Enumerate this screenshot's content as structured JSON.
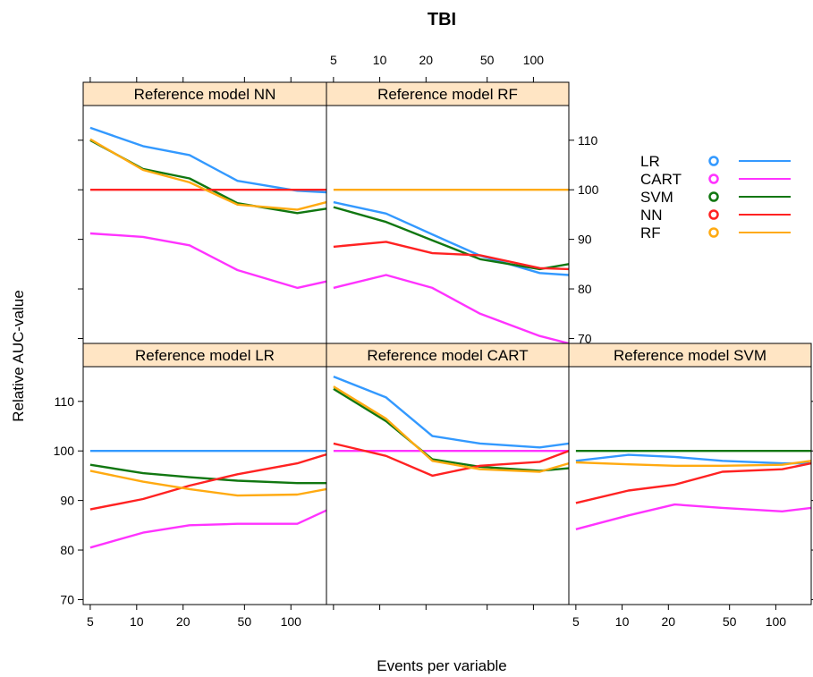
{
  "chart_data": {
    "type": "line",
    "title": "TBI",
    "xlabel": "Events per variable",
    "ylabel": "Relative AUC-value",
    "x_scale": "log",
    "xlim": [
      4.5,
      170
    ],
    "ylim": [
      69,
      117
    ],
    "x_ticks": [
      5,
      10,
      20,
      50,
      100
    ],
    "y_ticks": [
      70,
      80,
      90,
      100,
      110
    ],
    "x": [
      5,
      11,
      22,
      45,
      110,
      170
    ],
    "legend_position": "right",
    "legend": [
      {
        "name": "LR",
        "color": "#3399ff"
      },
      {
        "name": "CART",
        "color": "#ff33ff"
      },
      {
        "name": "SVM",
        "color": "#117711"
      },
      {
        "name": "NN",
        "color": "#ff2222"
      },
      {
        "name": "RF",
        "color": "#ffaa11"
      }
    ],
    "panels": [
      {
        "strip": "Reference model NN",
        "series": [
          {
            "name": "LR",
            "values": [
              112.5,
              108.8,
              107.0,
              101.8,
              99.8,
              99.5
            ]
          },
          {
            "name": "CART",
            "values": [
              91.2,
              90.5,
              88.8,
              83.8,
              80.2,
              81.5
            ]
          },
          {
            "name": "SVM",
            "values": [
              110.0,
              104.2,
              102.3,
              97.3,
              95.3,
              96.2
            ]
          },
          {
            "name": "NN",
            "values": [
              100.0,
              100.0,
              100.0,
              100.0,
              100.0,
              100.0
            ]
          },
          {
            "name": "RF",
            "values": [
              110.2,
              104.0,
              101.5,
              97.0,
              96.0,
              97.5
            ]
          }
        ]
      },
      {
        "strip": "Reference model RF",
        "series": [
          {
            "name": "LR",
            "values": [
              97.5,
              95.2,
              91.0,
              86.7,
              83.2,
              82.8
            ]
          },
          {
            "name": "CART",
            "values": [
              80.2,
              82.8,
              80.2,
              75.0,
              70.5,
              69.0
            ]
          },
          {
            "name": "SVM",
            "values": [
              96.5,
              93.5,
              89.8,
              86.0,
              84.0,
              85.0
            ]
          },
          {
            "name": "NN",
            "values": [
              88.5,
              89.5,
              87.2,
              86.8,
              84.2,
              84.0
            ]
          },
          {
            "name": "RF",
            "values": [
              100.0,
              100.0,
              100.0,
              100.0,
              100.0,
              100.0
            ]
          }
        ]
      },
      {
        "strip": "Reference model LR",
        "series": [
          {
            "name": "LR",
            "values": [
              100.0,
              100.0,
              100.0,
              100.0,
              100.0,
              100.0
            ]
          },
          {
            "name": "CART",
            "values": [
              80.5,
              83.5,
              85.0,
              85.3,
              85.3,
              88.0
            ]
          },
          {
            "name": "SVM",
            "values": [
              97.2,
              95.5,
              94.7,
              94.0,
              93.5,
              93.5
            ]
          },
          {
            "name": "NN",
            "values": [
              88.2,
              90.3,
              93.0,
              95.3,
              97.5,
              99.3
            ]
          },
          {
            "name": "RF",
            "values": [
              96.0,
              93.8,
              92.3,
              91.0,
              91.2,
              92.3
            ]
          }
        ]
      },
      {
        "strip": "Reference model CART",
        "series": [
          {
            "name": "LR",
            "values": [
              115.0,
              110.8,
              103.0,
              101.5,
              100.7,
              101.5
            ]
          },
          {
            "name": "CART",
            "values": [
              100.0,
              100.0,
              100.0,
              100.0,
              100.0,
              100.0
            ]
          },
          {
            "name": "SVM",
            "values": [
              112.5,
              106.0,
              98.3,
              96.8,
              96.0,
              96.5
            ]
          },
          {
            "name": "NN",
            "values": [
              101.5,
              99.0,
              95.0,
              97.0,
              97.8,
              100.0
            ]
          },
          {
            "name": "RF",
            "values": [
              113.0,
              106.5,
              98.0,
              96.3,
              95.8,
              97.5
            ]
          }
        ]
      },
      {
        "strip": "Reference model SVM",
        "series": [
          {
            "name": "LR",
            "values": [
              98.0,
              99.2,
              98.8,
              98.0,
              97.5,
              97.5
            ]
          },
          {
            "name": "CART",
            "values": [
              84.2,
              87.0,
              89.2,
              88.5,
              87.8,
              88.5
            ]
          },
          {
            "name": "SVM",
            "values": [
              100.0,
              100.0,
              100.0,
              100.0,
              100.0,
              100.0
            ]
          },
          {
            "name": "NN",
            "values": [
              89.5,
              92.0,
              93.2,
              95.8,
              96.3,
              97.5
            ]
          },
          {
            "name": "RF",
            "values": [
              97.7,
              97.3,
              97.0,
              97.0,
              97.2,
              98.0
            ]
          }
        ]
      }
    ]
  }
}
